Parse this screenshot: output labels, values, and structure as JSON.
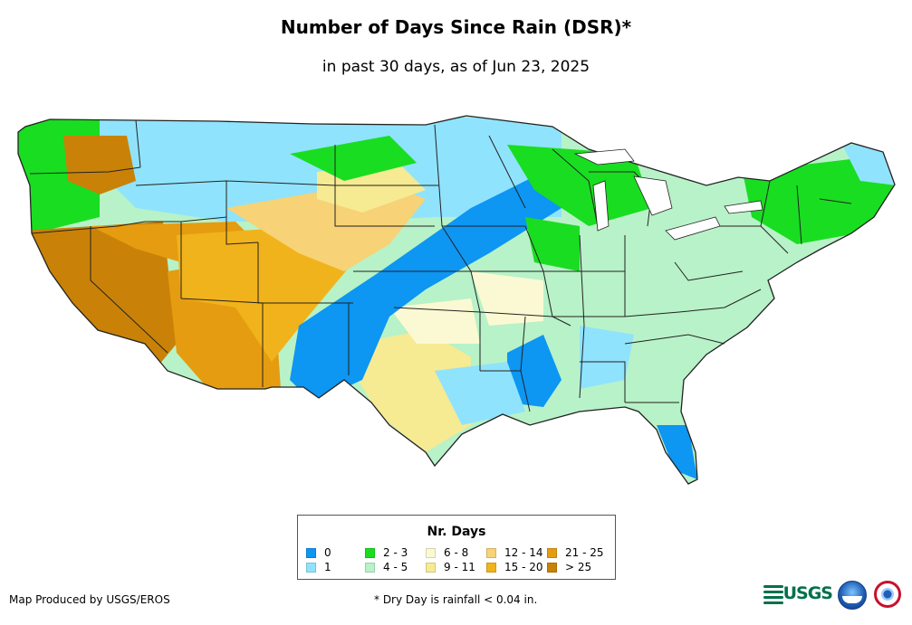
{
  "title": "Number of Days Since Rain (DSR)*",
  "subtitle": "in past 30 days, as of Jun 23, 2025",
  "legend": {
    "title": "Nr. Days",
    "items": [
      {
        "label": "0",
        "color": "#0d96f2"
      },
      {
        "label": "1",
        "color": "#90e3fc"
      },
      {
        "label": "2 - 3",
        "color": "#19dd21"
      },
      {
        "label": "4 - 5",
        "color": "#b8f2c8"
      },
      {
        "label": "6 - 8",
        "color": "#fbf9d3"
      },
      {
        "label": "9 - 11",
        "color": "#f6ea93"
      },
      {
        "label": "12 - 14",
        "color": "#f7d276"
      },
      {
        "label": "15 - 20",
        "color": "#f1b31b"
      },
      {
        "label": "21 - 25",
        "color": "#e59c10"
      },
      {
        "label": "> 25",
        "color": "#c98207"
      }
    ]
  },
  "credit": "Map Produced by USGS/EROS",
  "footnote": "* Dry Day is rainfall < 0.04 in.",
  "logos": {
    "usgs": {
      "text": "USGS",
      "icon": "usgs-logo-icon",
      "color": "#00704a"
    },
    "noaa": {
      "icon": "noaa-logo-icon"
    },
    "nws": {
      "icon": "nws-logo-icon"
    }
  }
}
